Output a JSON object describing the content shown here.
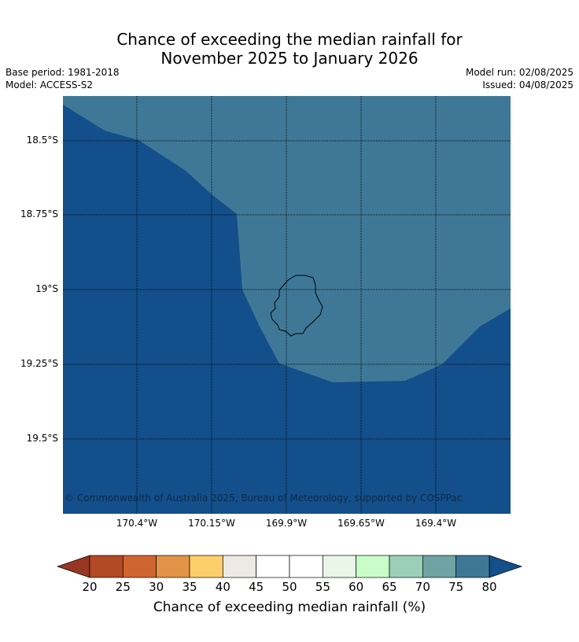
{
  "header": {
    "title_line1": "Chance of exceeding the median rainfall for",
    "title_line2": "November 2025 to January 2026",
    "base_period": "Base period: 1981-2018",
    "model": "Model: ACCESS-S2",
    "model_run": "Model run: 02/08/2025",
    "issued": "Issued: 04/08/2025"
  },
  "map": {
    "lon_ticks": [
      "170.4°W",
      "170.15°W",
      "169.9°W",
      "169.65°W",
      "169.4°W"
    ],
    "lat_ticks": [
      "18.5°S",
      "18.75°S",
      "19°S",
      "19.25°S",
      "19.5°S"
    ],
    "copyright": "© Commonwealth of Australia 2025, Bureau of Meteorology, supported by COSPPac",
    "fill_colors": {
      "75-80": "#3f7896",
      "80+": "#134f8a"
    }
  },
  "colorbar": {
    "label": "Chance of exceeding median rainfall (%)",
    "ticks": [
      "20",
      "25",
      "30",
      "35",
      "40",
      "45",
      "50",
      "55",
      "60",
      "65",
      "70",
      "75",
      "80"
    ],
    "colors": [
      "#b24a25",
      "#cf6632",
      "#e29448",
      "#fdcf6b",
      "#ede9e5",
      "#ffffff",
      "#ffffff",
      "#e9f6e8",
      "#c8fcc8",
      "#9ccfb8",
      "#6fa3a4",
      "#3f7896"
    ],
    "under_color": "#973622",
    "over_color": "#134f8a"
  }
}
